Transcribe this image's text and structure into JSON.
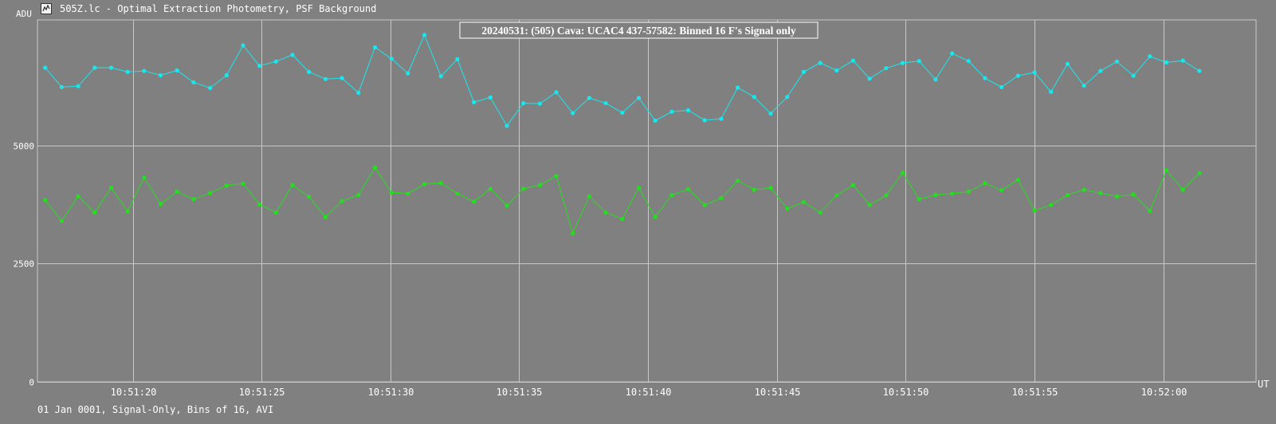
{
  "window": {
    "title": "505Z.lc - Optimal Extraction Photometry, PSF Background",
    "icon": "lightcurve-app-icon"
  },
  "footer": {
    "text": "01 Jan 0001, Signal-Only, Bins of 16, AVI"
  },
  "colors": {
    "background": "#808080",
    "grid": "#c8c8c8",
    "series_cyan": "#17e8f0",
    "series_green": "#22e11c",
    "text": "#ffffff",
    "title_box_border": "#ffffff"
  },
  "chart_data": {
    "type": "line",
    "title": "20240531: (505) Cava: UCAC4 437-57582: Binned 16 F's Signal only",
    "ylabel": "ADU",
    "xlabel": "UT",
    "ylim": [
      0,
      7650
    ],
    "yticks": [
      0,
      2500,
      5000
    ],
    "xlim": [
      "10:51:16.3",
      "10:52:03.6"
    ],
    "xticks": [
      "10:51:20",
      "10:51:25",
      "10:51:30",
      "10:51:35",
      "10:51:40",
      "10:51:45",
      "10:51:50",
      "10:51:55",
      "10:52:00"
    ],
    "grid": true,
    "x_start": "10:51:16.6",
    "x_step_seconds": 0.64,
    "series": [
      {
        "color": "cyan",
        "values": [
          6640,
          6230,
          6250,
          6640,
          6640,
          6550,
          6570,
          6480,
          6580,
          6330,
          6210,
          6480,
          7110,
          6680,
          6770,
          6910,
          6550,
          6400,
          6420,
          6110,
          7070,
          6830,
          6520,
          7330,
          6460,
          6820,
          5910,
          6010,
          5410,
          5890,
          5880,
          6120,
          5680,
          6000,
          5890,
          5690,
          6000,
          5520,
          5710,
          5740,
          5530,
          5560,
          6220,
          6020,
          5670,
          6020,
          6550,
          6740,
          6580,
          6790,
          6410,
          6630,
          6740,
          6780,
          6390,
          6940,
          6780,
          6420,
          6230,
          6470,
          6540,
          6130,
          6720,
          6260,
          6570,
          6770,
          6470,
          6880,
          6750,
          6790,
          6570
        ]
      },
      {
        "color": "green",
        "values": [
          3840,
          3400,
          3920,
          3580,
          4100,
          3600,
          4320,
          3760,
          4020,
          3860,
          3990,
          4150,
          4190,
          3750,
          3580,
          4160,
          3910,
          3480,
          3820,
          3950,
          4530,
          4000,
          3980,
          4180,
          4200,
          3980,
          3810,
          4080,
          3720,
          4080,
          4160,
          4350,
          3140,
          3920,
          3580,
          3440,
          4100,
          3480,
          3950,
          4070,
          3740,
          3880,
          4250,
          4060,
          4100,
          3660,
          3800,
          3580,
          3940,
          4160,
          3740,
          3940,
          4420,
          3860,
          3950,
          3980,
          4020,
          4200,
          4050,
          4270,
          3620,
          3740,
          3950,
          4060,
          3990,
          3920,
          3960,
          3610,
          4470,
          4060,
          4410
        ]
      }
    ]
  }
}
